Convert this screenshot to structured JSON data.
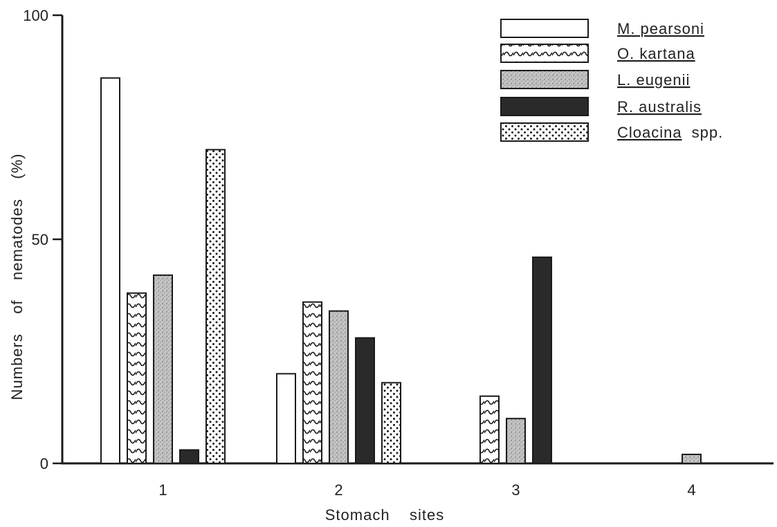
{
  "chart_data": {
    "type": "bar",
    "title": "",
    "xlabel": "Stomach    sites",
    "ylabel": "Numbers    of    nematodes    (%)",
    "categories": [
      "1",
      "2",
      "3",
      "4"
    ],
    "ylim": [
      0,
      100
    ],
    "yticks": [
      0,
      50,
      100
    ],
    "grid": false,
    "legend_position": "top-right",
    "series": [
      {
        "name": "M. pearsoni",
        "pattern": "plain",
        "values": [
          86,
          20,
          0,
          0
        ]
      },
      {
        "name": "O. kartana",
        "pattern": "wavy",
        "values": [
          38,
          36,
          15,
          0
        ]
      },
      {
        "name": "L. eugenii",
        "pattern": "speckle",
        "values": [
          42,
          34,
          10,
          2
        ]
      },
      {
        "name": "R. australis",
        "pattern": "solid",
        "values": [
          3,
          28,
          46,
          0
        ]
      },
      {
        "name": "Cloacina spp.",
        "pattern": "dots",
        "values": [
          70,
          18,
          0,
          0
        ]
      }
    ],
    "legend": [
      {
        "name_main": "M. pearsoni",
        "name_suffix": ""
      },
      {
        "name_main": "O. kartana",
        "name_suffix": ""
      },
      {
        "name_main": "L. eugenii",
        "name_suffix": ""
      },
      {
        "name_main": "R. australis",
        "name_suffix": ""
      },
      {
        "name_main": "Cloacina",
        "name_suffix": "spp."
      }
    ],
    "colors": {
      "ink": "#1a1a1a",
      "speckle": "#bdbdbd",
      "solid": "#2a2a2a"
    }
  }
}
